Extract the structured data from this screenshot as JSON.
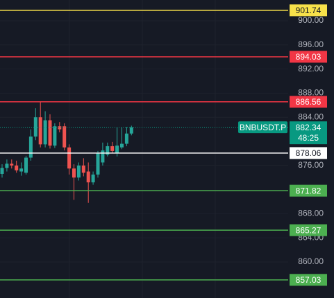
{
  "chart_data": {
    "type": "candlestick",
    "ylim": [
      854.02,
      903.45
    ],
    "yticks": [
      {
        "value": 900,
        "label": "900.00"
      },
      {
        "value": 896,
        "label": "896.00"
      },
      {
        "value": 892,
        "label": "892.00"
      },
      {
        "value": 888,
        "label": "888.00"
      },
      {
        "value": 884,
        "label": "884.00"
      },
      {
        "value": 876,
        "label": "876.00"
      },
      {
        "value": 868,
        "label": "868.00"
      },
      {
        "value": 864,
        "label": "864.00"
      },
      {
        "value": 860,
        "label": "860.00"
      }
    ],
    "grid": true,
    "up_color": "#26a69a",
    "down_color": "#ef5350",
    "open": [
      874.6,
      875.6,
      876.3,
      876.0,
      875.0,
      874.8,
      877.3,
      880.8,
      884.0,
      879.5,
      883.5,
      879.3,
      882.5,
      882.5,
      879.0,
      875.5,
      874.0,
      876.0,
      875.0,
      873.2,
      874.5,
      876.5,
      877.8,
      879.2,
      878.0,
      879.0,
      879.6,
      881.3
    ],
    "high": [
      876.2,
      877.0,
      877.0,
      876.8,
      876.5,
      877.6,
      882.0,
      885.5,
      886.5,
      885.0,
      884.5,
      883.0,
      883.2,
      883.0,
      879.5,
      876.2,
      876.5,
      877.2,
      876.5,
      875.0,
      878.4,
      879.8,
      879.8,
      879.9,
      882.3,
      882.3,
      882.4,
      882.6
    ],
    "low": [
      874.0,
      875.0,
      875.5,
      874.8,
      874.3,
      874.5,
      876.8,
      880.2,
      879.0,
      879.0,
      878.8,
      878.9,
      881.5,
      878.5,
      874.5,
      870.3,
      873.5,
      874.2,
      869.8,
      872.8,
      874.0,
      876.0,
      877.5,
      878.0,
      877.5,
      878.7,
      879.2,
      881.0
    ],
    "close": [
      875.6,
      876.3,
      876.0,
      875.2,
      875.5,
      877.3,
      880.8,
      884.0,
      879.5,
      883.5,
      879.3,
      882.5,
      882.0,
      879.0,
      875.5,
      874.0,
      876.0,
      874.8,
      873.2,
      874.5,
      878.0,
      878.5,
      879.2,
      878.4,
      879.3,
      879.6,
      881.3,
      882.34
    ],
    "price_lines": [
      {
        "value": 901.74,
        "color": "#f7e14a"
      },
      {
        "value": 894.03,
        "color": "#f23645"
      },
      {
        "value": 886.56,
        "color": "#f23645"
      },
      {
        "value": 878.06,
        "color": "#ffffff"
      },
      {
        "value": 871.82,
        "color": "#4caf50"
      },
      {
        "value": 865.27,
        "color": "#4caf50"
      },
      {
        "value": 857.03,
        "color": "#4caf50"
      }
    ],
    "current_price": {
      "value": 882.34,
      "symbol": "BNBUSDT.P",
      "countdown": "48:25",
      "color": "#089981"
    }
  }
}
